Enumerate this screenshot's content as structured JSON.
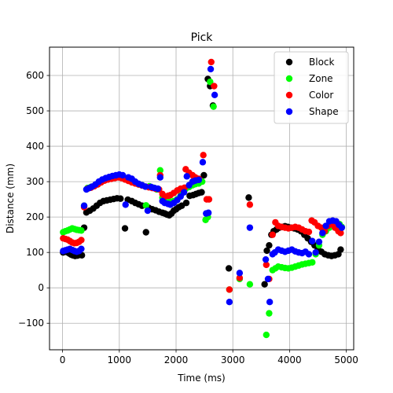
{
  "chart_data": {
    "type": "scatter",
    "title": "Pick",
    "xlabel": "Time (ms)",
    "ylabel": "Distance (mm)",
    "xlim": [
      -230,
      5130
    ],
    "ylim": [
      -175,
      680
    ],
    "xticks": [
      0,
      1000,
      2000,
      3000,
      4000,
      5000
    ],
    "yticks": [
      -100,
      0,
      100,
      200,
      300,
      400,
      500,
      600
    ],
    "grid": true,
    "legend_position": "top-right",
    "series": [
      {
        "name": "Block",
        "color": "#000000",
        "points": [
          [
            10,
            100
          ],
          [
            50,
            102
          ],
          [
            90,
            100
          ],
          [
            120,
            97
          ],
          [
            150,
            94
          ],
          [
            180,
            92
          ],
          [
            220,
            90
          ],
          [
            260,
            91
          ],
          [
            300,
            93
          ],
          [
            340,
            92
          ],
          [
            380,
            170
          ],
          [
            420,
            213
          ],
          [
            480,
            218
          ],
          [
            540,
            224
          ],
          [
            600,
            232
          ],
          [
            660,
            240
          ],
          [
            720,
            245
          ],
          [
            780,
            247
          ],
          [
            840,
            249
          ],
          [
            900,
            251
          ],
          [
            960,
            253
          ],
          [
            1020,
            252
          ],
          [
            1100,
            168
          ],
          [
            1150,
            249
          ],
          [
            1220,
            245
          ],
          [
            1280,
            240
          ],
          [
            1340,
            236
          ],
          [
            1400,
            232
          ],
          [
            1470,
            157
          ],
          [
            1520,
            226
          ],
          [
            1580,
            222
          ],
          [
            1640,
            219
          ],
          [
            1700,
            215
          ],
          [
            1760,
            212
          ],
          [
            1800,
            210
          ],
          [
            1840,
            207
          ],
          [
            1880,
            205
          ],
          [
            1920,
            210
          ],
          [
            1960,
            218
          ],
          [
            2000,
            222
          ],
          [
            2050,
            228
          ],
          [
            2100,
            232
          ],
          [
            2180,
            240
          ],
          [
            2240,
            260
          ],
          [
            2300,
            262
          ],
          [
            2350,
            265
          ],
          [
            2400,
            268
          ],
          [
            2450,
            270
          ],
          [
            2490,
            318
          ],
          [
            2560,
            590
          ],
          [
            2600,
            570
          ],
          [
            2650,
            515
          ],
          [
            2930,
            55
          ],
          [
            3280,
            255
          ],
          [
            3560,
            10
          ],
          [
            3600,
            105
          ],
          [
            3640,
            120
          ],
          [
            3680,
            150
          ],
          [
            3720,
            160
          ],
          [
            3770,
            165
          ],
          [
            3820,
            170
          ],
          [
            3870,
            172
          ],
          [
            3920,
            174
          ],
          [
            3970,
            172
          ],
          [
            4020,
            170
          ],
          [
            4080,
            168
          ],
          [
            4140,
            165
          ],
          [
            4200,
            160
          ],
          [
            4260,
            150
          ],
          [
            4320,
            140
          ],
          [
            4380,
            130
          ],
          [
            4440,
            120
          ],
          [
            4500,
            110
          ],
          [
            4560,
            102
          ],
          [
            4620,
            95
          ],
          [
            4680,
            92
          ],
          [
            4740,
            90
          ],
          [
            4800,
            92
          ],
          [
            4860,
            95
          ],
          [
            4900,
            108
          ]
        ]
      },
      {
        "name": "Zone",
        "color": "#00ff00",
        "points": [
          [
            10,
            157
          ],
          [
            50,
            160
          ],
          [
            90,
            162
          ],
          [
            130,
            165
          ],
          [
            170,
            168
          ],
          [
            210,
            166
          ],
          [
            250,
            164
          ],
          [
            290,
            163
          ],
          [
            330,
            162
          ],
          [
            380,
            232
          ],
          [
            440,
            282
          ],
          [
            500,
            285
          ],
          [
            560,
            288
          ],
          [
            620,
            295
          ],
          [
            680,
            302
          ],
          [
            740,
            306
          ],
          [
            800,
            310
          ],
          [
            860,
            312
          ],
          [
            920,
            316
          ],
          [
            980,
            318
          ],
          [
            1040,
            315
          ],
          [
            1100,
            310
          ],
          [
            1160,
            305
          ],
          [
            1220,
            300
          ],
          [
            1280,
            297
          ],
          [
            1340,
            292
          ],
          [
            1400,
            290
          ],
          [
            1470,
            233
          ],
          [
            1530,
            287
          ],
          [
            1600,
            283
          ],
          [
            1660,
            278
          ],
          [
            1720,
            332
          ],
          [
            1760,
            255
          ],
          [
            1800,
            250
          ],
          [
            1860,
            247
          ],
          [
            1900,
            244
          ],
          [
            1960,
            245
          ],
          [
            2020,
            250
          ],
          [
            2080,
            260
          ],
          [
            2120,
            270
          ],
          [
            2170,
            280
          ],
          [
            2230,
            285
          ],
          [
            2290,
            290
          ],
          [
            2340,
            293
          ],
          [
            2400,
            295
          ],
          [
            2460,
            300
          ],
          [
            2520,
            192
          ],
          [
            2560,
            200
          ],
          [
            2600,
            582
          ],
          [
            2660,
            512
          ],
          [
            2940,
            -5
          ],
          [
            3120,
            25
          ],
          [
            3300,
            10
          ],
          [
            3590,
            -133
          ],
          [
            3640,
            -72
          ],
          [
            3700,
            50
          ],
          [
            3750,
            55
          ],
          [
            3800,
            60
          ],
          [
            3860,
            58
          ],
          [
            3920,
            56
          ],
          [
            3980,
            55
          ],
          [
            4040,
            57
          ],
          [
            4100,
            60
          ],
          [
            4160,
            63
          ],
          [
            4220,
            66
          ],
          [
            4280,
            68
          ],
          [
            4340,
            70
          ],
          [
            4400,
            72
          ],
          [
            4460,
            95
          ],
          [
            4520,
            120
          ],
          [
            4580,
            150
          ],
          [
            4640,
            160
          ],
          [
            4700,
            170
          ],
          [
            4760,
            180
          ],
          [
            4820,
            182
          ],
          [
            4880,
            180
          ],
          [
            4920,
            172
          ]
        ]
      },
      {
        "name": "Color",
        "color": "#ff0000",
        "points": [
          [
            10,
            140
          ],
          [
            50,
            138
          ],
          [
            90,
            136
          ],
          [
            130,
            132
          ],
          [
            170,
            128
          ],
          [
            210,
            126
          ],
          [
            250,
            127
          ],
          [
            290,
            130
          ],
          [
            330,
            135
          ],
          [
            380,
            228
          ],
          [
            440,
            280
          ],
          [
            500,
            283
          ],
          [
            560,
            287
          ],
          [
            620,
            292
          ],
          [
            680,
            298
          ],
          [
            740,
            303
          ],
          [
            800,
            306
          ],
          [
            860,
            308
          ],
          [
            920,
            310
          ],
          [
            980,
            312
          ],
          [
            1040,
            310
          ],
          [
            1100,
            306
          ],
          [
            1160,
            302
          ],
          [
            1220,
            298
          ],
          [
            1280,
            295
          ],
          [
            1340,
            292
          ],
          [
            1400,
            289
          ],
          [
            1460,
            286
          ],
          [
            1520,
            284
          ],
          [
            1580,
            282
          ],
          [
            1640,
            280
          ],
          [
            1700,
            278
          ],
          [
            1720,
            318
          ],
          [
            1760,
            265
          ],
          [
            1800,
            258
          ],
          [
            1860,
            260
          ],
          [
            1900,
            262
          ],
          [
            1960,
            268
          ],
          [
            2020,
            275
          ],
          [
            2080,
            280
          ],
          [
            2150,
            283
          ],
          [
            2170,
            335
          ],
          [
            2230,
            325
          ],
          [
            2290,
            318
          ],
          [
            2340,
            312
          ],
          [
            2400,
            308
          ],
          [
            2480,
            375
          ],
          [
            2540,
            250
          ],
          [
            2580,
            250
          ],
          [
            2620,
            638
          ],
          [
            2670,
            570
          ],
          [
            2940,
            -5
          ],
          [
            3120,
            28
          ],
          [
            3300,
            235
          ],
          [
            3590,
            65
          ],
          [
            3640,
            25
          ],
          [
            3700,
            150
          ],
          [
            3750,
            185
          ],
          [
            3800,
            175
          ],
          [
            3860,
            172
          ],
          [
            3920,
            170
          ],
          [
            3980,
            168
          ],
          [
            4040,
            170
          ],
          [
            4100,
            172
          ],
          [
            4160,
            170
          ],
          [
            4220,
            165
          ],
          [
            4280,
            160
          ],
          [
            4340,
            158
          ],
          [
            4390,
            190
          ],
          [
            4440,
            185
          ],
          [
            4500,
            175
          ],
          [
            4560,
            170
          ],
          [
            4620,
            160
          ],
          [
            4680,
            175
          ],
          [
            4740,
            180
          ],
          [
            4800,
            170
          ],
          [
            4860,
            160
          ],
          [
            4900,
            155
          ]
        ]
      },
      {
        "name": "Shape",
        "color": "#0000ff",
        "points": [
          [
            10,
            104
          ],
          [
            50,
            106
          ],
          [
            90,
            108
          ],
          [
            130,
            110
          ],
          [
            170,
            107
          ],
          [
            210,
            104
          ],
          [
            250,
            102
          ],
          [
            290,
            104
          ],
          [
            330,
            110
          ],
          [
            380,
            232
          ],
          [
            420,
            278
          ],
          [
            470,
            282
          ],
          [
            520,
            286
          ],
          [
            580,
            292
          ],
          [
            640,
            300
          ],
          [
            700,
            306
          ],
          [
            760,
            310
          ],
          [
            820,
            313
          ],
          [
            880,
            316
          ],
          [
            940,
            318
          ],
          [
            1000,
            320
          ],
          [
            1060,
            318
          ],
          [
            1110,
            235
          ],
          [
            1160,
            312
          ],
          [
            1220,
            308
          ],
          [
            1280,
            300
          ],
          [
            1340,
            294
          ],
          [
            1400,
            290
          ],
          [
            1460,
            286
          ],
          [
            1500,
            218
          ],
          [
            1560,
            285
          ],
          [
            1620,
            282
          ],
          [
            1680,
            280
          ],
          [
            1720,
            312
          ],
          [
            1760,
            245
          ],
          [
            1800,
            240
          ],
          [
            1860,
            237
          ],
          [
            1900,
            235
          ],
          [
            1960,
            240
          ],
          [
            2020,
            248
          ],
          [
            2080,
            258
          ],
          [
            2140,
            270
          ],
          [
            2190,
            315
          ],
          [
            2230,
            290
          ],
          [
            2290,
            300
          ],
          [
            2340,
            303
          ],
          [
            2400,
            305
          ],
          [
            2470,
            355
          ],
          [
            2530,
            210
          ],
          [
            2570,
            212
          ],
          [
            2610,
            618
          ],
          [
            2680,
            545
          ],
          [
            2940,
            -40
          ],
          [
            3120,
            42
          ],
          [
            3300,
            170
          ],
          [
            3580,
            80
          ],
          [
            3620,
            25
          ],
          [
            3650,
            -40
          ],
          [
            3700,
            95
          ],
          [
            3740,
            100
          ],
          [
            3800,
            108
          ],
          [
            3860,
            105
          ],
          [
            3920,
            102
          ],
          [
            3980,
            105
          ],
          [
            4040,
            108
          ],
          [
            4100,
            103
          ],
          [
            4160,
            100
          ],
          [
            4220,
            98
          ],
          [
            4280,
            102
          ],
          [
            4340,
            95
          ],
          [
            4400,
            132
          ],
          [
            4460,
            100
          ],
          [
            4520,
            130
          ],
          [
            4580,
            155
          ],
          [
            4640,
            175
          ],
          [
            4700,
            188
          ],
          [
            4760,
            190
          ],
          [
            4820,
            188
          ],
          [
            4870,
            178
          ],
          [
            4920,
            170
          ]
        ]
      }
    ]
  }
}
